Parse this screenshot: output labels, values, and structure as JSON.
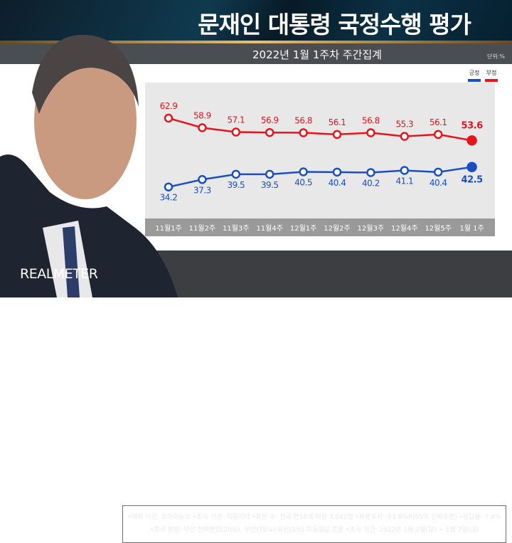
{
  "header": {
    "title": "문재인 대통령 국정수행 평가",
    "subtitle": "2022년 1월 1주차 주간집계",
    "unit": "단위:%"
  },
  "logo": "REALMETER",
  "footer": {
    "line1": "•의뢰 기관: 오마이뉴스 •조사 기관: 리얼미터 •표본 수: 전국 만18세 이상 3,042명 •표본오차: ±1.8%P(95% 신뢰수준) •응답률: 7.6%",
    "line2": "•조사 방법: 무선 전화면접(20%), 무선(75%)·유선(5%) 자동응답 혼용  •조사 기간: 2022년 1월 2일(일) ~ 1월 7일(금)"
  },
  "chart_data": {
    "type": "line",
    "categories": [
      "11월1주",
      "11월2주",
      "11월3주",
      "11월4주",
      "12월1주",
      "12월2주",
      "12월3주",
      "12월4주",
      "12월5주",
      "1월 1주"
    ],
    "series": [
      {
        "name": "긍정",
        "color": "#1a4fc4",
        "values": [
          34.2,
          37.3,
          39.5,
          39.5,
          40.5,
          40.4,
          40.2,
          41.1,
          40.4,
          42.5
        ]
      },
      {
        "name": "부정",
        "color": "#e8141c",
        "values": [
          62.9,
          58.9,
          57.1,
          56.9,
          56.8,
          56.1,
          56.8,
          55.3,
          56.1,
          53.6
        ]
      }
    ],
    "legend_position": "top-right",
    "grid": false
  }
}
